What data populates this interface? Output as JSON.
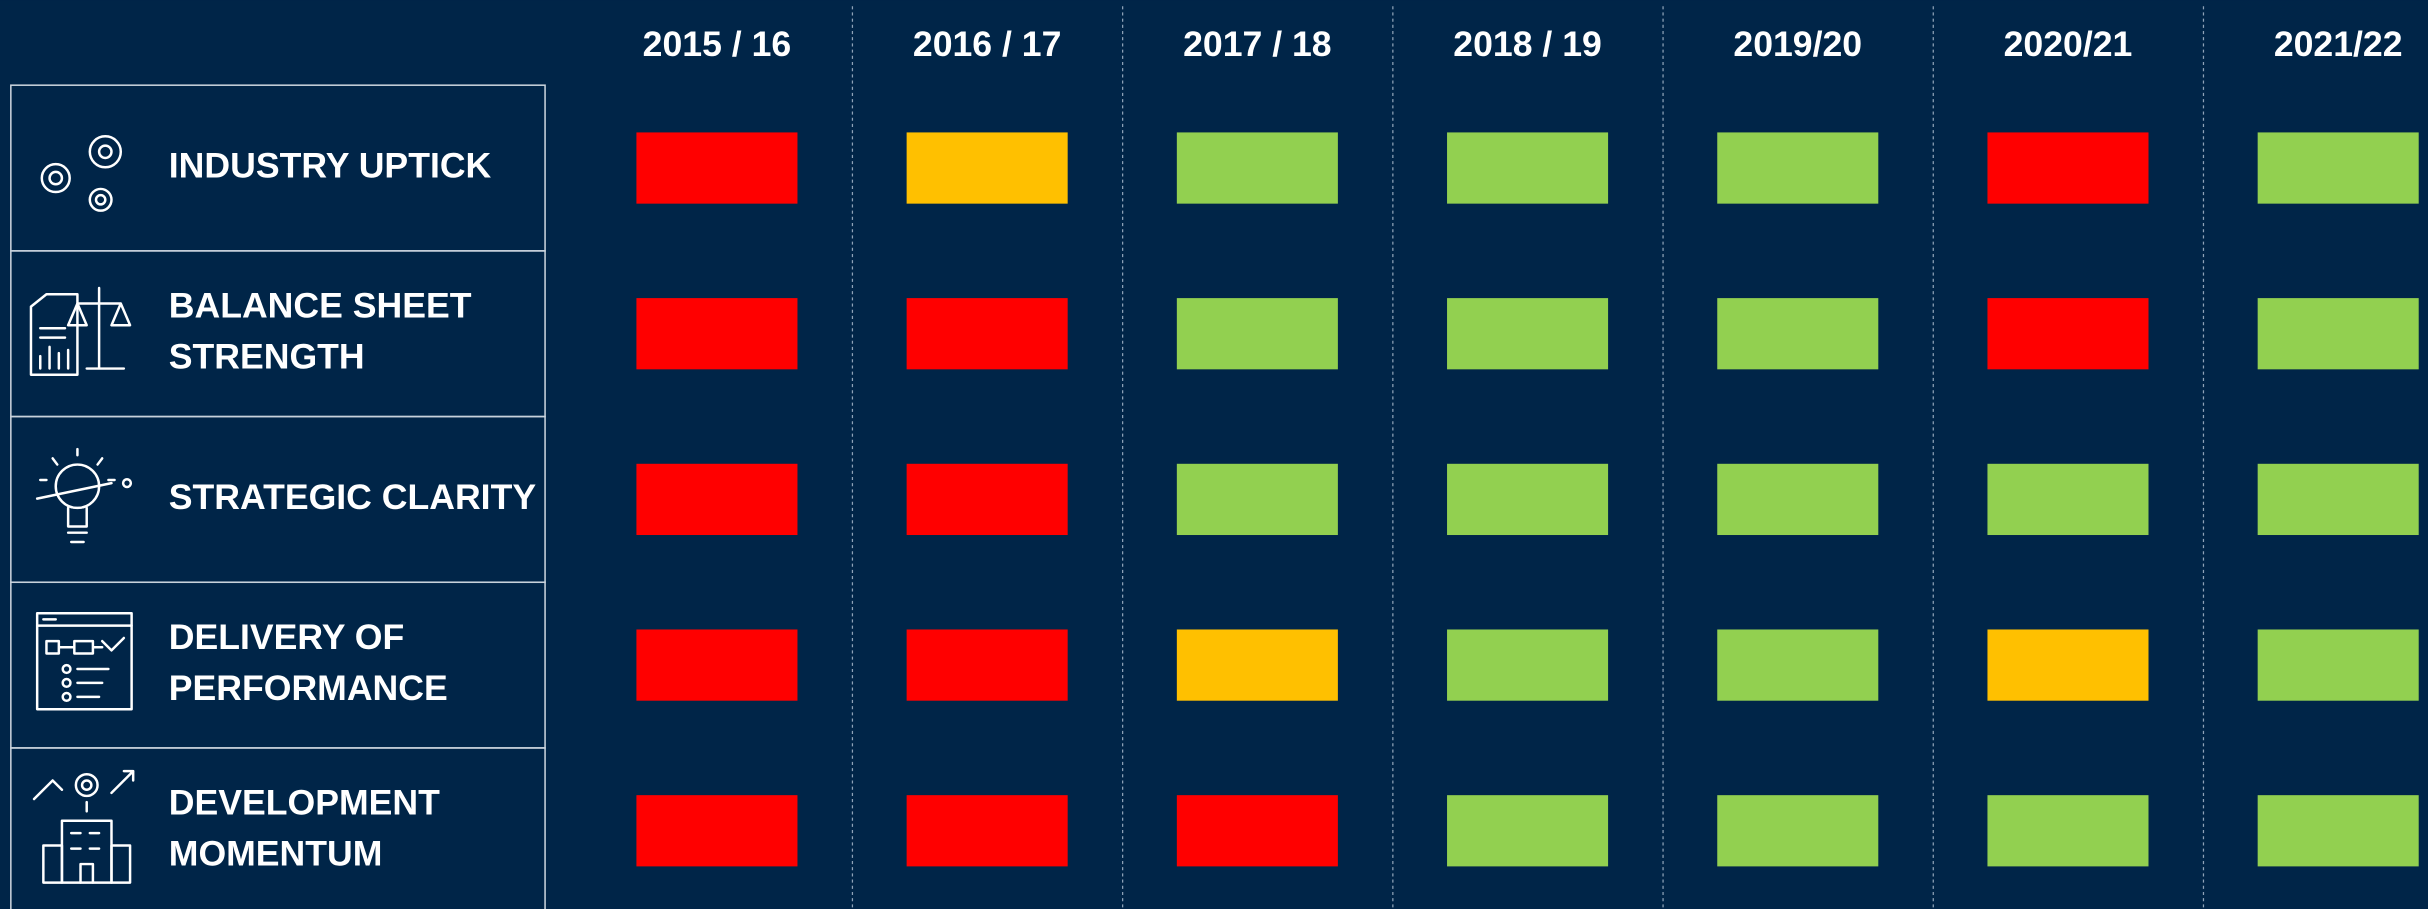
{
  "grid": {
    "columns": [
      "2015 / 16",
      "2016 / 17",
      "2017 / 18",
      "2018 / 19",
      "2019/20",
      "2020/21",
      "2021/22"
    ],
    "rows": [
      {
        "label": [
          "INDUSTRY UPTICK"
        ],
        "cells": [
          "#ff0000",
          "#ffc000",
          "#92d050",
          "#92d050",
          "#92d050",
          "#ff0000",
          "#92d050"
        ]
      },
      {
        "label": [
          "BALANCE SHEET",
          "STRENGTH"
        ],
        "cells": [
          "#ff0000",
          "#ff0000",
          "#92d050",
          "#92d050",
          "#92d050",
          "#ff0000",
          "#92d050"
        ]
      },
      {
        "label": [
          "STRATEGIC CLARITY"
        ],
        "cells": [
          "#ff0000",
          "#ff0000",
          "#92d050",
          "#92d050",
          "#92d050",
          "#92d050",
          "#92d050"
        ]
      },
      {
        "label": [
          "DELIVERY OF",
          "PERFORMANCE"
        ],
        "cells": [
          "#ff0000",
          "#ff0000",
          "#ffc000",
          "#92d050",
          "#92d050",
          "#ffc000",
          "#92d050"
        ]
      },
      {
        "label": [
          "DEVELOPMENT",
          "MOMENTUM"
        ],
        "cells": [
          "#ff0000",
          "#ff0000",
          "#ff0000",
          "#92d050",
          "#92d050",
          "#92d050",
          "#92d050"
        ]
      }
    ]
  }
}
